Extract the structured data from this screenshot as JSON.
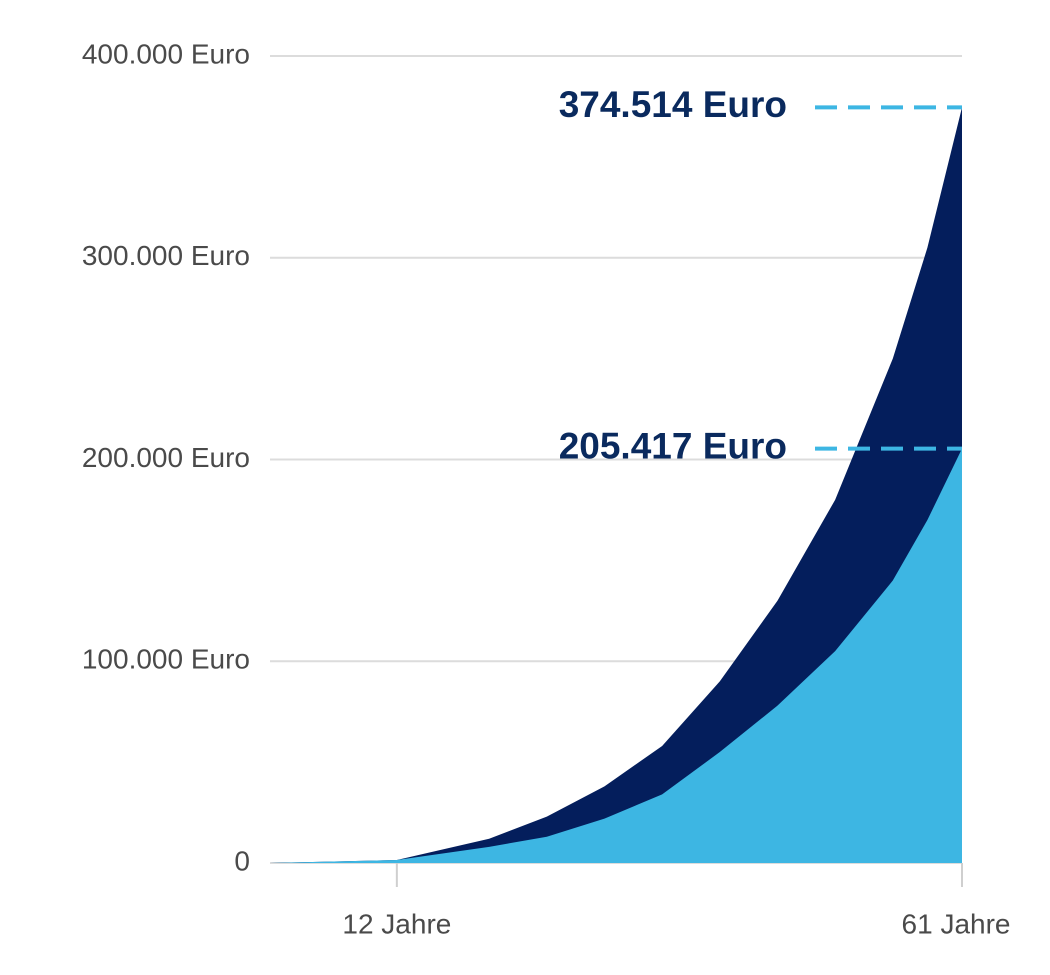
{
  "chart_data": {
    "type": "area",
    "x": [
      1,
      12,
      20,
      25,
      30,
      35,
      40,
      45,
      50,
      55,
      58,
      61
    ],
    "series": [
      {
        "color": "#041e5c",
        "values": [
          0,
          1500,
          12000,
          23000,
          38000,
          58000,
          90000,
          130000,
          180000,
          250000,
          305000,
          374514
        ],
        "value_labels": [
          null,
          null,
          null,
          null,
          null,
          null,
          null,
          null,
          null,
          null,
          null,
          "374.514 Euro"
        ]
      },
      {
        "color": "#3db6e3",
        "values": [
          0,
          1500,
          8000,
          13000,
          22000,
          34000,
          55000,
          78000,
          105000,
          140000,
          170000,
          205417
        ],
        "value_labels": [
          null,
          null,
          null,
          null,
          null,
          null,
          null,
          null,
          null,
          null,
          null,
          "205.417 Euro"
        ]
      }
    ],
    "xlim": [
      1,
      61
    ],
    "xticks": [
      {
        "value": 12,
        "label": "12 Jahre"
      },
      {
        "value": 61,
        "label": "61 Jahre"
      }
    ],
    "ylim": [
      0,
      400000
    ],
    "yticks": [
      0,
      {
        "value": 100000,
        "label": "100.000 Euro"
      },
      {
        "value": 200000,
        "label": "200.000 Euro"
      },
      {
        "value": 300000,
        "label": "300.000 Euro"
      },
      {
        "value": 400000,
        "label": "400.000 Euro"
      }
    ],
    "grid": true,
    "annotation_line_color": "#3db6e3"
  }
}
